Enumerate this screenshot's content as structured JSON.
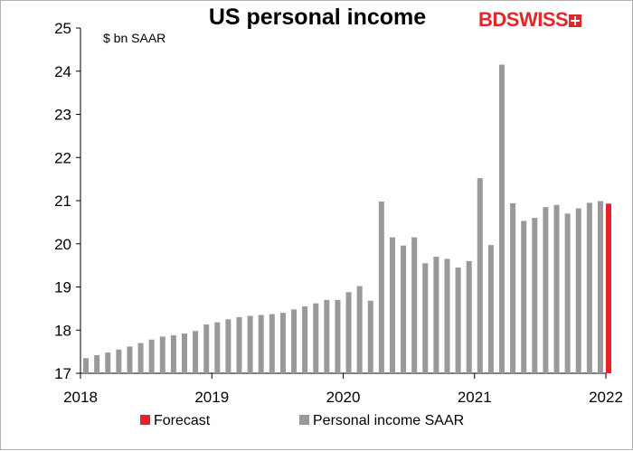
{
  "chart_data": {
    "type": "bar",
    "title": "US personal income",
    "unit_label": "$ bn SAAR",
    "ylim": [
      17,
      25
    ],
    "yticks": [
      "17",
      "18",
      "19",
      "20",
      "21",
      "22",
      "23",
      "24",
      "25"
    ],
    "xticks": [
      "2018",
      "2019",
      "2020",
      "2021",
      "2022"
    ],
    "grid": false,
    "legend_position": "bottom",
    "series": [
      {
        "name": "Personal income SAAR",
        "color": "#999999",
        "values": [
          17.35,
          17.42,
          17.48,
          17.55,
          17.62,
          17.7,
          17.78,
          17.85,
          17.88,
          17.92,
          17.98,
          18.13,
          18.18,
          18.25,
          18.3,
          18.33,
          18.35,
          18.37,
          18.4,
          18.48,
          18.55,
          18.62,
          18.7,
          18.7,
          18.88,
          19.02,
          18.68,
          20.98,
          20.15,
          19.96,
          20.15,
          19.55,
          19.7,
          19.65,
          19.45,
          19.6,
          21.52,
          19.97,
          24.15,
          20.94,
          20.53,
          20.6,
          20.85,
          20.9,
          20.7,
          20.82,
          20.95,
          20.99
        ]
      },
      {
        "name": "Forecast",
        "color": "#e62128",
        "values_index": 48,
        "value": 20.93
      }
    ]
  },
  "logo": {
    "text_a": "BD",
    "text_b": "SWISS"
  }
}
